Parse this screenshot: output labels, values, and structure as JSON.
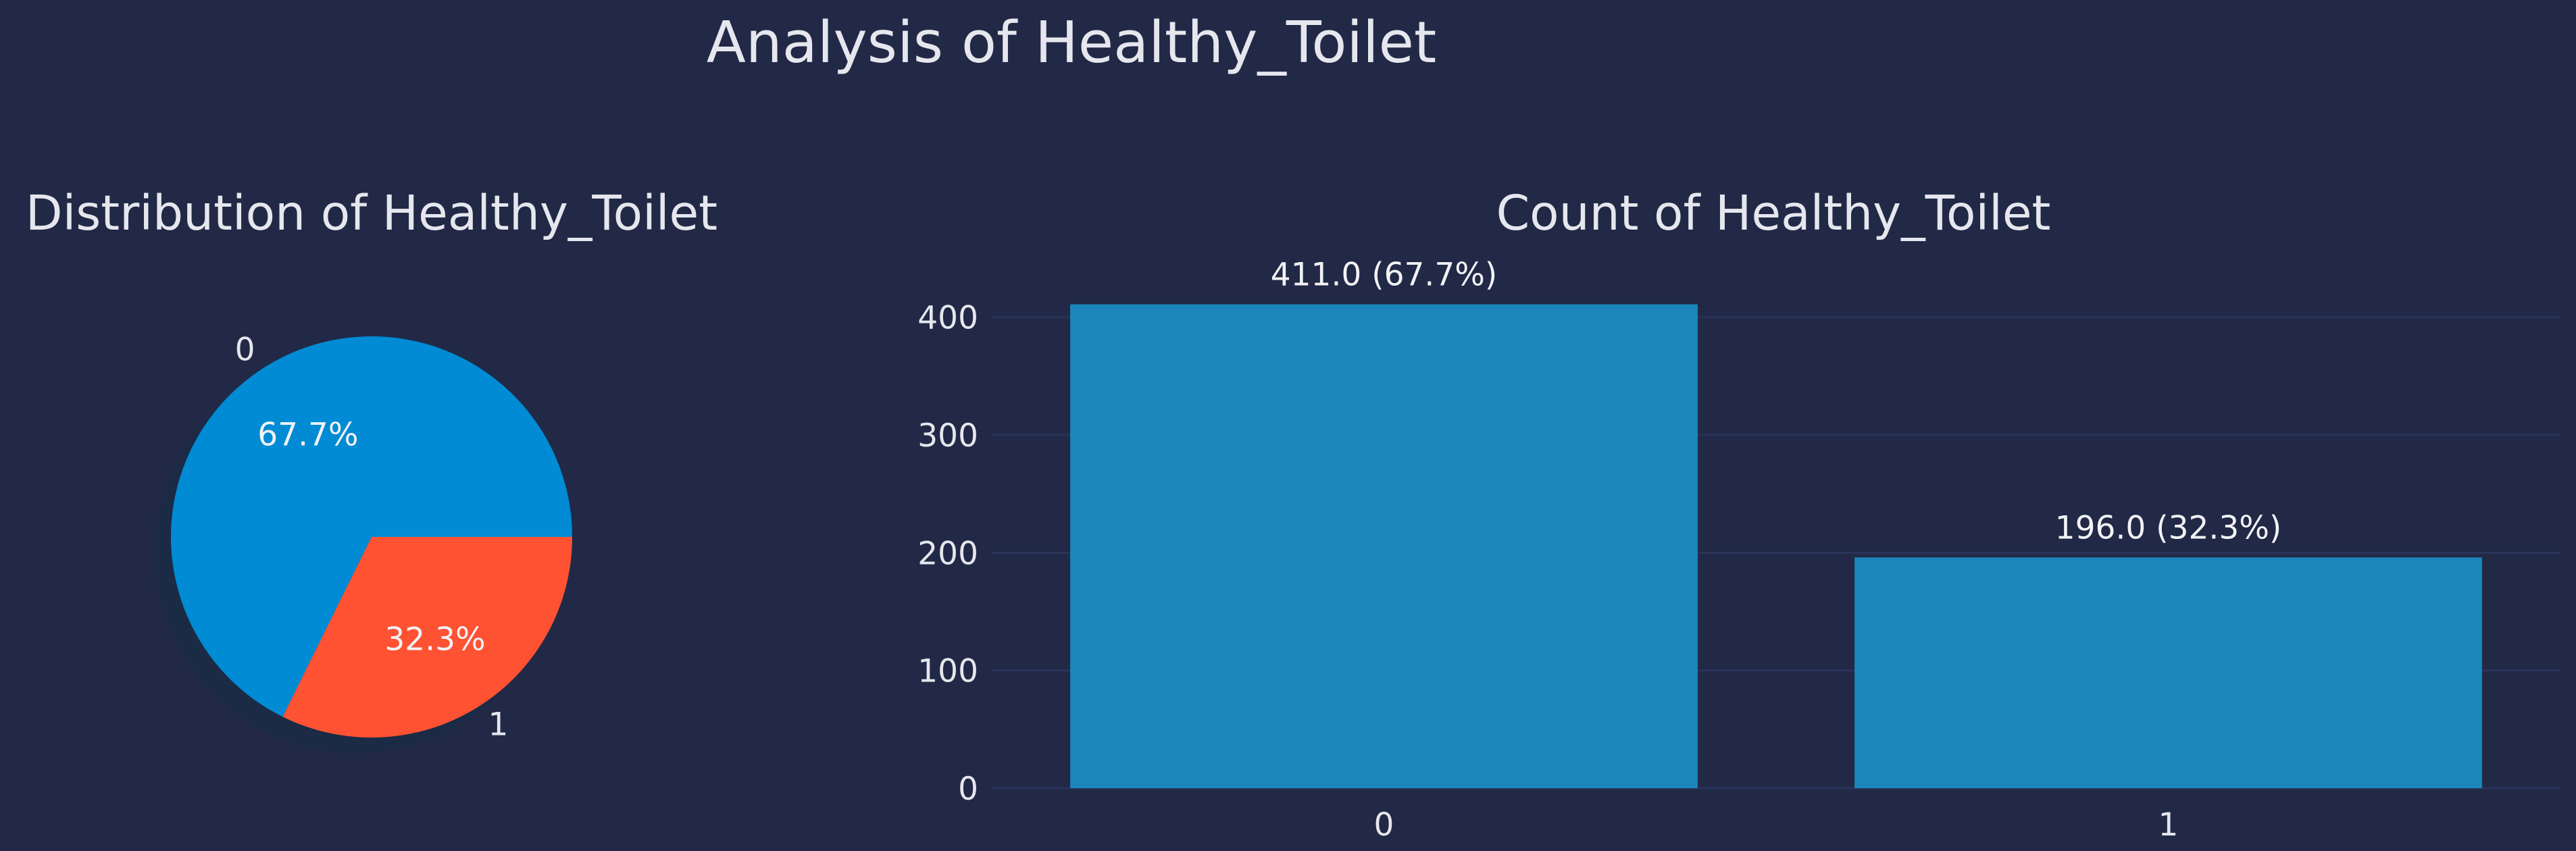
{
  "title": "Analysis of Healthy_Toilet",
  "colors": {
    "background": "#212946",
    "grid": "#2a3459",
    "text": "#e6e7ee",
    "slice_0": "#008bd4",
    "slice_1": "#ff5233",
    "bar": "#1c86ba",
    "shadow": "#1b2a45"
  },
  "chart_data": [
    {
      "type": "pie",
      "title": "Distribution of Healthy_Toilet",
      "labels": [
        "0",
        "1"
      ],
      "values": [
        67.7,
        32.3
      ],
      "pct_labels": [
        "67.7%",
        "32.3%"
      ],
      "shadow": true
    },
    {
      "type": "bar",
      "title": "Count of Healthy_Toilet",
      "categories": [
        "0",
        "1"
      ],
      "values": [
        411,
        196
      ],
      "bar_labels": [
        "411.0 (67.7%)",
        "196.0 (32.3%)"
      ],
      "yticks": [
        "0",
        "100",
        "200",
        "300",
        "400"
      ],
      "ylim": [
        0,
        440
      ],
      "grid": true
    }
  ]
}
